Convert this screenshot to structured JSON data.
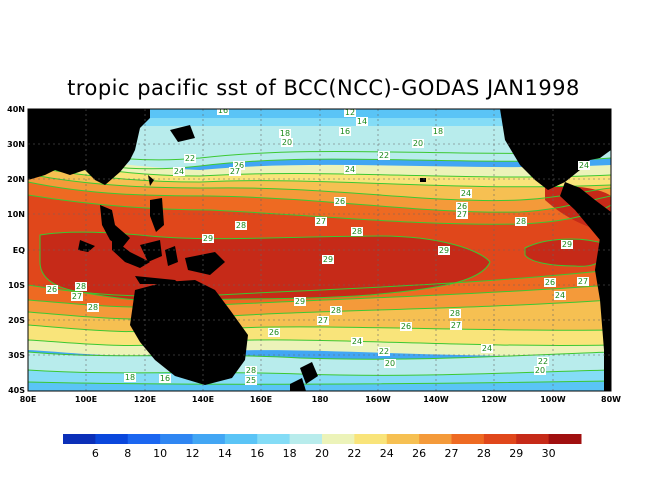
{
  "title": "tropic pacific sst of BCC(NCC)-GODAS JAN1998",
  "lat_labels": [
    "40N",
    "30N",
    "20N",
    "10N",
    "EQ",
    "10S",
    "20S",
    "30S",
    "40S"
  ],
  "lon_labels": [
    "80E",
    "100E",
    "120E",
    "140E",
    "160E",
    "180",
    "160W",
    "140W",
    "120W",
    "100W",
    "80W"
  ],
  "contour_labels": [
    "12",
    "14",
    "16",
    "16",
    "16",
    "18",
    "18",
    "18",
    "20",
    "20",
    "20",
    "20",
    "22",
    "22",
    "22",
    "22",
    "24",
    "24",
    "24",
    "24",
    "24",
    "24",
    "24",
    "25",
    "26",
    "26",
    "26",
    "26",
    "26",
    "26",
    "26",
    "27",
    "27",
    "27",
    "27",
    "27",
    "27",
    "27",
    "28",
    "28",
    "28",
    "28",
    "28",
    "28",
    "28",
    "28",
    "29",
    "29",
    "29",
    "29",
    "29"
  ],
  "colorbar": {
    "labels": [
      "6",
      "8",
      "10",
      "12",
      "14",
      "16",
      "18",
      "20",
      "22",
      "24",
      "26",
      "27",
      "28",
      "29",
      "30"
    ],
    "colors": [
      "#0b2fb8",
      "#0a47dc",
      "#1b66f0",
      "#2f86f2",
      "#42a6f4",
      "#5ac4f6",
      "#84dcf6",
      "#b8ecec",
      "#ecf3b9",
      "#f9e47a",
      "#f6c052",
      "#f49a3a",
      "#ee6a22",
      "#e0471b",
      "#c62a18",
      "#a00f0f"
    ]
  },
  "colors": {
    "land": "#000000",
    "contour_line": "#3cc832",
    "label_text": "#1b8a1b"
  }
}
